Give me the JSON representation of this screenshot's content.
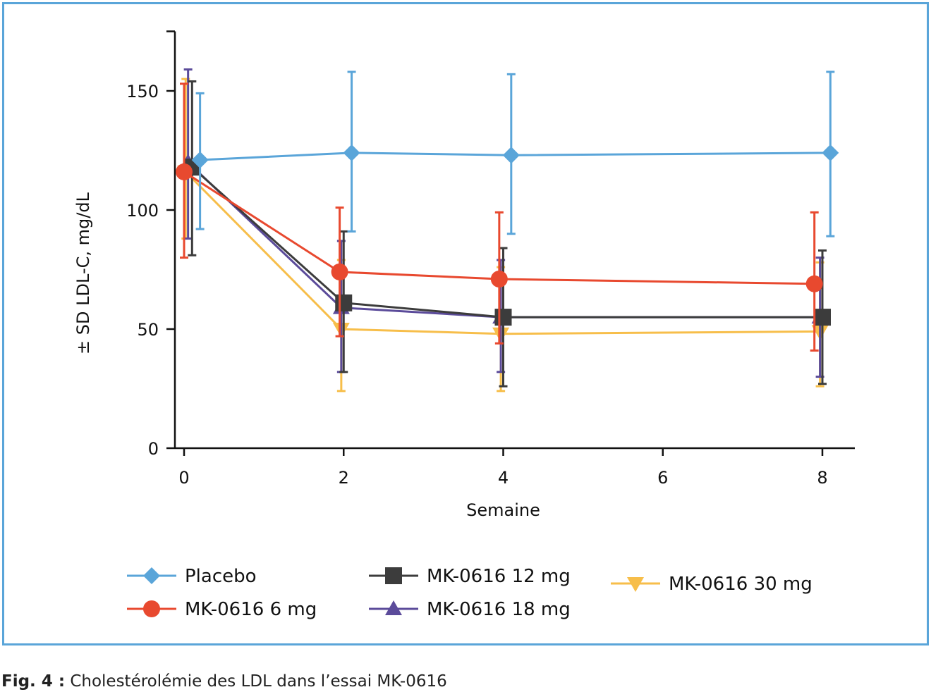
{
  "caption": {
    "prefix": "Fig. 4 :",
    "text": " Cholestérolémie des LDL dans l’essai MK-0616"
  },
  "chart_data": {
    "type": "line",
    "title": "",
    "xlabel": "Semaine",
    "ylabel": "± SD LDL-C, mg/dL",
    "xlim": [
      0,
      8
    ],
    "ylim": [
      0,
      175
    ],
    "x_ticks": [
      0,
      2,
      4,
      6,
      8
    ],
    "y_ticks": [
      0,
      50,
      100,
      150
    ],
    "grid": false,
    "legend_position": "bottom",
    "series": [
      {
        "name": "Placebo",
        "color": "#5aa5d9",
        "marker": "diamond",
        "x": [
          0.2,
          2.1,
          4.1,
          8.1
        ],
        "y": [
          121,
          124,
          123,
          124
        ],
        "err_low": [
          92,
          91,
          90,
          89
        ],
        "err_high": [
          149,
          158,
          157,
          158
        ]
      },
      {
        "name": "MK-0616 6 mg",
        "color": "#e8492f",
        "marker": "circle",
        "x": [
          0,
          1.95,
          3.95,
          7.9
        ],
        "y": [
          116,
          74,
          71,
          69
        ],
        "err_low": [
          80,
          47,
          44,
          41
        ],
        "err_high": [
          153,
          101,
          99,
          99
        ]
      },
      {
        "name": "MK-0616 12 mg",
        "color": "#3c3c3c",
        "marker": "square",
        "x": [
          0.1,
          2.0,
          4.0,
          8.0
        ],
        "y": [
          118,
          61,
          55,
          55
        ],
        "err_low": [
          81,
          32,
          26,
          27
        ],
        "err_high": [
          154,
          91,
          84,
          83
        ]
      },
      {
        "name": "MK-0616 18 mg",
        "color": "#5b4b9a",
        "marker": "triangle-up",
        "x": [
          0.05,
          1.97,
          3.97,
          7.97
        ],
        "y": [
          120,
          59,
          55,
          55
        ],
        "err_low": [
          88,
          32,
          32,
          30
        ],
        "err_high": [
          159,
          87,
          79,
          80
        ]
      },
      {
        "name": "MK-0616  30 mg",
        "color": "#f7be4a",
        "marker": "triangle-down",
        "x": [
          0.02,
          1.97,
          3.97,
          7.97
        ],
        "y": [
          116,
          50,
          48,
          49
        ],
        "err_low": [
          88,
          24,
          24,
          26
        ],
        "err_high": [
          155,
          79,
          76,
          78
        ]
      }
    ]
  }
}
